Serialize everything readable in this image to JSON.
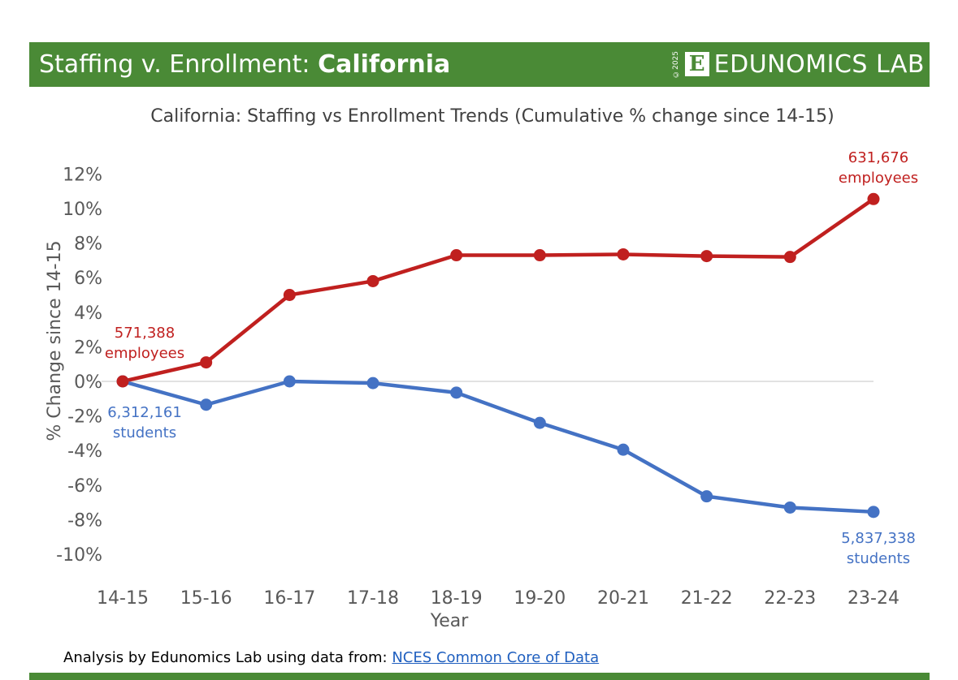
{
  "header": {
    "title_prefix": "Staffing v. Enrollment: ",
    "title_state": "California",
    "copyright": "©2025",
    "logo_letter": "E",
    "brand": "EDUNOMICS LAB"
  },
  "colors": {
    "brand_green": "#4a8a36",
    "employees": "#c0201f",
    "students": "#4472c4"
  },
  "chart_data": {
    "type": "line",
    "title": "California: Staffing vs Enrollment Trends (Cumulative % change since 14-15)",
    "xlabel": "Year",
    "ylabel": "% Change since 14-15",
    "categories": [
      "14-15",
      "15-16",
      "16-17",
      "17-18",
      "18-19",
      "19-20",
      "20-21",
      "21-22",
      "22-23",
      "23-24"
    ],
    "ylim": [
      -11,
      12
    ],
    "yticks": [
      12,
      10,
      8,
      6,
      4,
      2,
      0,
      -2,
      -4,
      -6,
      -8,
      -10
    ],
    "ytick_labels": [
      "12%",
      "10%",
      "8%",
      "6%",
      "4%",
      "2%",
      "0%",
      "-2%",
      "-4%",
      "-6%",
      "-8%",
      "-10%"
    ],
    "series": [
      {
        "name": "employees",
        "values": [
          0,
          1.1,
          5.0,
          5.8,
          7.3,
          7.3,
          7.35,
          7.25,
          7.2,
          10.55
        ],
        "start_label": [
          "571,388",
          "employees"
        ],
        "end_label": [
          "631,676",
          "employees"
        ]
      },
      {
        "name": "students",
        "values": [
          0,
          -1.35,
          0.0,
          -0.1,
          -0.65,
          -2.4,
          -3.95,
          -6.65,
          -7.3,
          -7.55
        ],
        "start_label": [
          "6,312,161",
          "students"
        ],
        "end_label": [
          "5,837,338",
          "students"
        ]
      }
    ]
  },
  "footer": {
    "note": "Analysis by Edunomics Lab using data from: ",
    "link": "NCES Common Core of Data"
  }
}
